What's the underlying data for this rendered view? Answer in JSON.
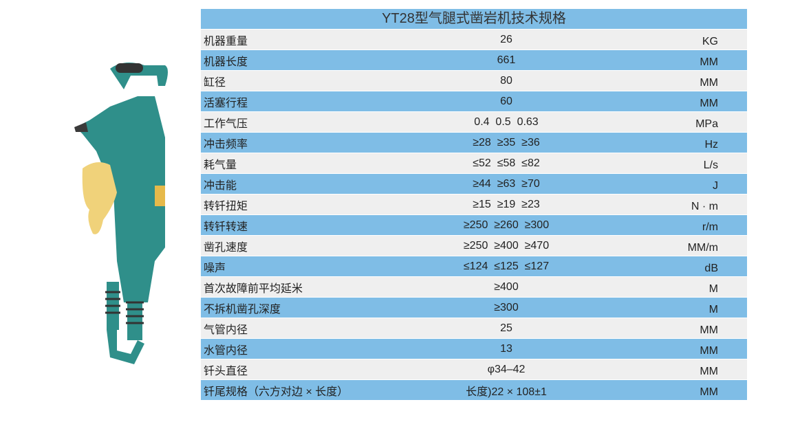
{
  "title": "YT28型气腿式凿岩机技术规格",
  "rows": [
    {
      "name": "机器重量",
      "value": "26",
      "unit": "KG"
    },
    {
      "name": "机器长度",
      "value": "661",
      "unit": "MM"
    },
    {
      "name": "缸径",
      "value": "80",
      "unit": "MM"
    },
    {
      "name": "活塞行程",
      "value": "60",
      "unit": "MM"
    },
    {
      "name": "工作气压",
      "value": "0.4  0.5  0.63",
      "unit": "MPa"
    },
    {
      "name": "冲击频率",
      "value": "≥28  ≥35  ≥36",
      "unit": "Hz"
    },
    {
      "name": "耗气量",
      "value": "≤52  ≤58  ≤82",
      "unit": "L/s"
    },
    {
      "name": "冲击能",
      "value": "≥44  ≥63  ≥70",
      "unit": "J"
    },
    {
      "name": "转钎扭矩",
      "value": "≥15  ≥19  ≥23",
      "unit": "N · m"
    },
    {
      "name": "转钎转速",
      "value": "≥250  ≥260  ≥300",
      "unit": "r/m"
    },
    {
      "name": "凿孔速度",
      "value": "≥250  ≥400  ≥470",
      "unit": "MM/m"
    },
    {
      "name": "噪声",
      "value": "≤124  ≤125  ≤127",
      "unit": "dB"
    },
    {
      "name": "首次故障前平均延米",
      "value": "≥400",
      "unit": "M"
    },
    {
      "name": "不拆机凿孔深度",
      "value": "≥300",
      "unit": "M"
    },
    {
      "name": "气管内径",
      "value": "25",
      "unit": "MM"
    },
    {
      "name": "水管内径",
      "value": "13",
      "unit": "MM"
    },
    {
      "name": "钎头直径",
      "value": "φ34–42",
      "unit": "MM"
    },
    {
      "name": "钎尾规格（六方对边 × 长度）",
      "value": "长度)22 × 108±1",
      "unit": "MM"
    }
  ],
  "colors": {
    "header": "#7fbde6",
    "stripe_blue": "#7fbde6",
    "stripe_gray": "#efefef",
    "drill_body": "#2f8f8a",
    "drill_tank": "#f0d27a"
  }
}
